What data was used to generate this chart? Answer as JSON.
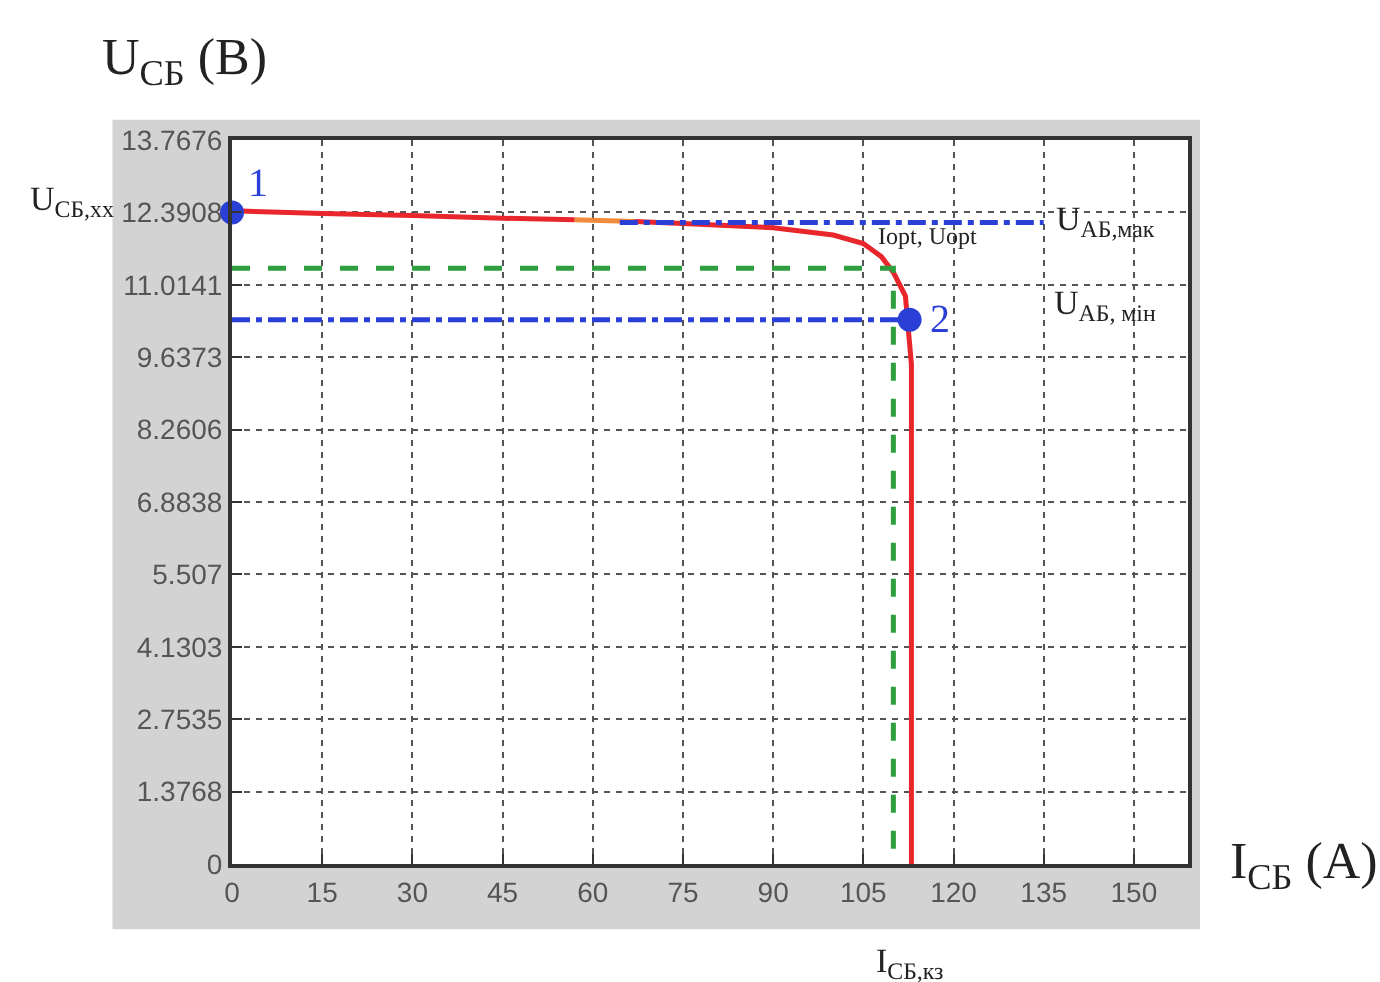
{
  "chart_data": {
    "type": "line",
    "xlabel": "I$_{СБ}$ (A)",
    "ylabel": "U$_{СБ}$ (B)",
    "xlim": [
      0,
      159
    ],
    "xticks": [
      0,
      15,
      30,
      45,
      60,
      75,
      90,
      105,
      120,
      135,
      150
    ],
    "ylim": [
      0,
      13.7676
    ],
    "yticks": [
      0,
      1.3768,
      2.7535,
      4.1303,
      5.507,
      6.8838,
      8.2606,
      9.6373,
      11.0141,
      12.3908,
      13.7676
    ],
    "grid": true,
    "series": [
      {
        "color": "#e8262b",
        "line_style": "solid",
        "x": [
          0,
          15,
          30,
          45,
          57
        ],
        "values": [
          12.42,
          12.37,
          12.33,
          12.28,
          12.25
        ]
      },
      {
        "color": "#f08a3c",
        "line_style": "solid",
        "x": [
          57,
          67
        ],
        "values": [
          12.25,
          12.22
        ]
      },
      {
        "color": "#e8262b",
        "line_style": "solid",
        "x": [
          67,
          75,
          90,
          100,
          105,
          108,
          110,
          112,
          113,
          113
        ],
        "values": [
          12.22,
          12.18,
          12.1,
          11.96,
          11.8,
          11.55,
          11.25,
          10.8,
          9.5,
          0
        ]
      },
      {
        "color": "#2e9e3e",
        "line_style": "dashed",
        "x": [
          0,
          110,
          110
        ],
        "values": [
          11.33,
          11.33,
          0
        ]
      },
      {
        "color": "#2a3fd6",
        "line_style": "dashdot",
        "x": [
          0,
          112.7
        ],
        "values": [
          10.35,
          10.35
        ]
      },
      {
        "color": "#2a3fd6",
        "line_style": "dashdot",
        "x": [
          64.5,
          135
        ],
        "values": [
          12.2,
          12.2
        ]
      },
      {
        "type": "scatter",
        "color": "#2a3fd6",
        "marker": "circle",
        "x": [
          0,
          112.7
        ],
        "values": [
          12.39,
          10.35
        ]
      }
    ],
    "annotations": [
      {
        "text": "1",
        "x": 0,
        "y": 12.39
      },
      "U$_{СБ,хх}$",
      {
        "text": "U$_{АБ,мак}$",
        "x": 135,
        "y": 12.2
      },
      {
        "text": "Iopt, Uopt",
        "x": 110,
        "y": 11.33
      },
      {
        "text": "2",
        "x": 112.7,
        "y": 10.35
      },
      "U$_{АБ, мін}$",
      {
        "text": "I$_{СБ,кз}$",
        "x": 112.7,
        "y": 0
      }
    ]
  }
}
